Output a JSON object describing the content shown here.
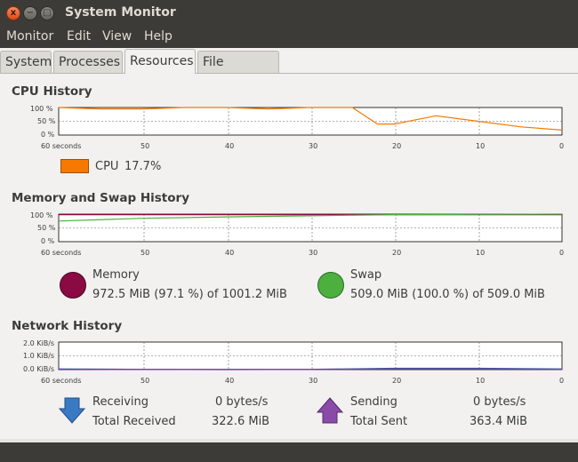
{
  "window": {
    "title": "System Monitor",
    "buttons": {
      "close": "x",
      "minimize": "−",
      "maximize": "□"
    }
  },
  "menu": [
    "Monitor",
    "Edit",
    "View",
    "Help"
  ],
  "tabs": [
    {
      "label": "System",
      "active": false
    },
    {
      "label": "Processes",
      "active": false
    },
    {
      "label": "Resources",
      "active": true
    },
    {
      "label": "File Systems",
      "active": false
    }
  ],
  "cpu": {
    "title": "CPU History",
    "y_ticks": [
      "100 %",
      "50 %",
      "0 %"
    ],
    "x_ticks": [
      "60 seconds",
      "50",
      "40",
      "30",
      "20",
      "10",
      "0"
    ],
    "legend_label": "CPU",
    "legend_value": "17.7%",
    "color": "#f57900"
  },
  "memory": {
    "title": "Memory and Swap History",
    "y_ticks": [
      "100 %",
      "50 %",
      "0 %"
    ],
    "x_ticks": [
      "60 seconds",
      "50",
      "40",
      "30",
      "20",
      "10",
      "0"
    ],
    "mem_label": "Memory",
    "mem_value": "972.5 MiB (97.1 %) of 1001.2 MiB",
    "mem_color": "#8b0a44",
    "swap_label": "Swap",
    "swap_value": "509.0 MiB (100.0 %) of 509.0 MiB",
    "swap_color": "#4caf3e"
  },
  "network": {
    "title": "Network History",
    "y_ticks": [
      "2.0 KiB/s",
      "1.0 KiB/s",
      "0.0 KiB/s"
    ],
    "x_ticks": [
      "60 seconds",
      "50",
      "40",
      "30",
      "20",
      "10",
      "0"
    ],
    "receiving_label": "Receiving",
    "receiving_value": "0 bytes/s",
    "total_received_label": "Total Received",
    "total_received_value": "322.6 MiB",
    "sending_label": "Sending",
    "sending_value": "0 bytes/s",
    "total_sent_label": "Total Sent",
    "total_sent_value": "363.4 MiB",
    "receive_color": "#2f6aa8",
    "send_color": "#7b3a9a"
  },
  "chart_data": [
    {
      "type": "line",
      "title": "CPU History",
      "x": [
        60,
        55,
        50,
        45,
        40,
        35,
        30,
        25,
        22,
        20,
        15,
        10,
        5,
        0
      ],
      "series": [
        {
          "name": "CPU",
          "values": [
            100,
            95,
            95,
            100,
            100,
            95,
            100,
            100,
            40,
            40,
            70,
            50,
            30,
            18
          ]
        }
      ],
      "ylim": [
        0,
        100
      ]
    },
    {
      "type": "line",
      "title": "Memory and Swap History",
      "x": [
        60,
        50,
        40,
        30,
        20,
        10,
        0
      ],
      "series": [
        {
          "name": "Memory",
          "values": [
            98,
            98,
            98,
            98,
            98,
            98,
            98
          ]
        },
        {
          "name": "Swap",
          "values": [
            75,
            85,
            90,
            94,
            98,
            99,
            100
          ]
        }
      ],
      "ylim": [
        0,
        100
      ]
    },
    {
      "type": "line",
      "title": "Network History",
      "x": [
        60,
        50,
        40,
        30,
        20,
        10,
        0
      ],
      "series": [
        {
          "name": "Receiving",
          "values": [
            0.05,
            0.02,
            0.02,
            0.02,
            0.1,
            0.1,
            0.05
          ]
        },
        {
          "name": "Sending",
          "values": [
            0.0,
            0.01,
            0.0,
            0.01,
            0.05,
            0.05,
            0.02
          ]
        }
      ],
      "ylim": [
        0,
        2.0
      ]
    }
  ]
}
